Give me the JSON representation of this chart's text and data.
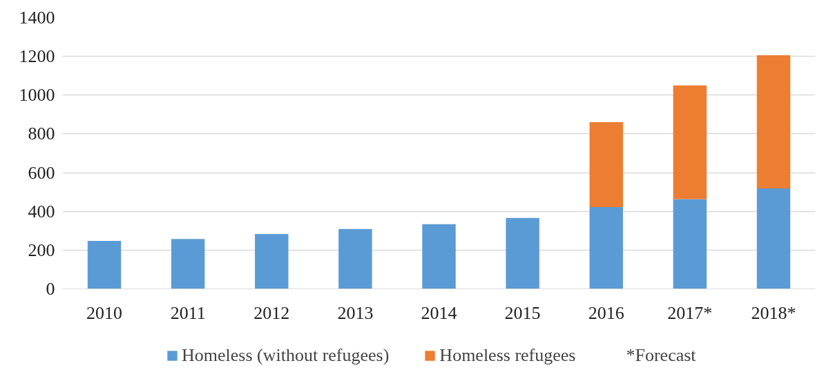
{
  "chart_data": {
    "type": "bar",
    "stacked": true,
    "categories": [
      "2010",
      "2011",
      "2012",
      "2013",
      "2014",
      "2015",
      "2016",
      "2017*",
      "2018*"
    ],
    "series": [
      {
        "name": "Homeless (without refugees)",
        "color": "#5b9bd5",
        "values": [
          248,
          257,
          283,
          309,
          334,
          366,
          422,
          463,
          518
        ]
      },
      {
        "name": "Homeless refugees",
        "color": "#ed7d31",
        "values": [
          null,
          null,
          null,
          null,
          null,
          null,
          438,
          587,
          688
        ]
      }
    ],
    "ylim": [
      0,
      1400
    ],
    "yticks": [
      0,
      200,
      400,
      600,
      800,
      1000,
      1200,
      1400
    ],
    "grid": "y",
    "legend": "bottom",
    "annotations": [
      "*Forecast"
    ]
  }
}
